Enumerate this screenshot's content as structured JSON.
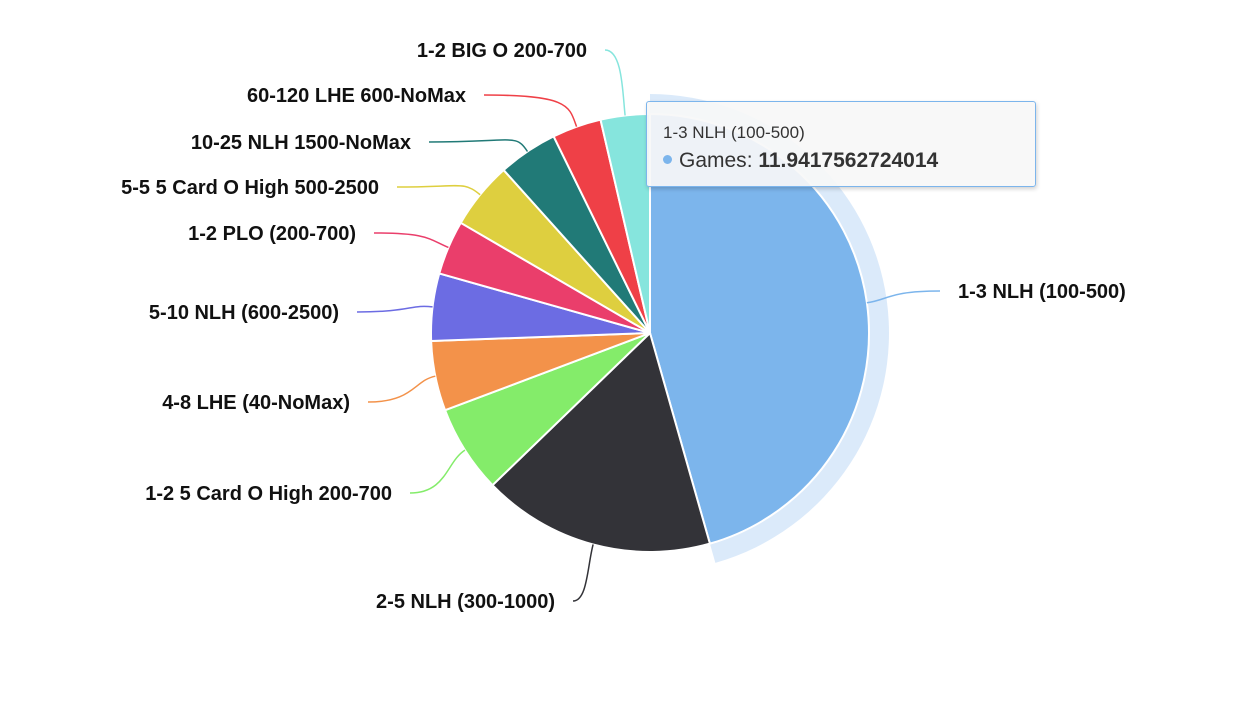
{
  "chart_data": {
    "type": "pie",
    "title": "",
    "categories": [
      "1-3 NLH (100-500)",
      "2-5 NLH (300-1000)",
      "1-2 5 Card O High 200-700",
      "4-8 LHE (40-NoMax)",
      "5-10 NLH (600-2500)",
      "1-2 PLO (200-700)",
      "5-5 5 Card O High 500-2500",
      "10-25 NLH 1500-NoMax",
      "60-120 LHE 600-NoMax",
      "1-2 BIG O 200-700"
    ],
    "values": [
      11.94,
      4.5,
      1.7,
      1.35,
      1.3,
      1.05,
      1.3,
      1.15,
      0.95,
      0.95
    ],
    "colors": [
      "#7cb5ec",
      "#333338",
      "#84ec6a",
      "#f3924a",
      "#6c6ce3",
      "#ea3e6b",
      "#decf3f",
      "#217a77",
      "#ef4047",
      "#86e5dd"
    ],
    "hovered_index": 0,
    "legend": "none"
  },
  "tooltip": {
    "title": "1-3 NLH (100-500)",
    "series_name": "Games",
    "separator": ": ",
    "value": "11.9417562724014",
    "color": "#7cb5ec"
  }
}
